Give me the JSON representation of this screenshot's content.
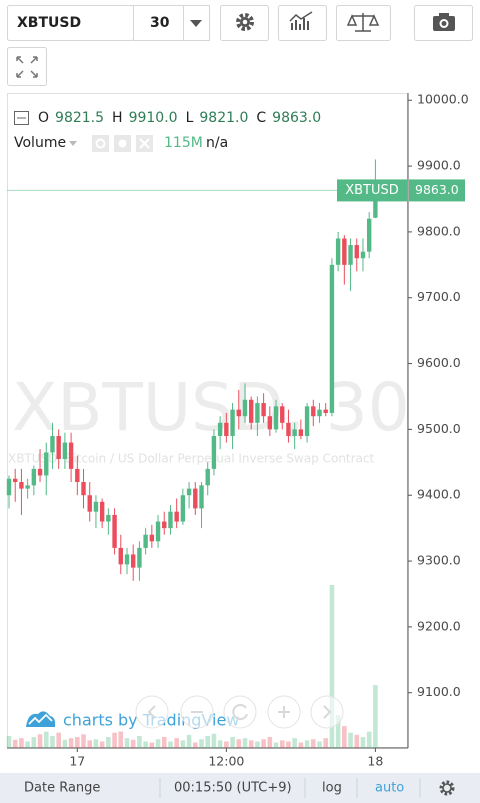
{
  "toolbar": {
    "symbol": "XBTUSD",
    "interval": "30"
  },
  "chart_data": {
    "type": "candlestick",
    "watermark": "XBTUSD, 30",
    "description": "XBTUSD, Bitcoin / US Dollar Perpetual Inverse Swap Contract",
    "header": {
      "labels": [
        "O",
        "H",
        "L",
        "C"
      ],
      "values": [
        "9821.5",
        "9910.0",
        "9821.0",
        "9863.0"
      ]
    },
    "categories": [
      null,
      null,
      null,
      null,
      null,
      null,
      null,
      null,
      null,
      null,
      null,
      "17",
      null,
      null,
      null,
      null,
      null,
      null,
      null,
      null,
      null,
      null,
      null,
      null,
      null,
      null,
      null,
      null,
      null,
      null,
      null,
      null,
      null,
      null,
      null,
      "12:00",
      null,
      null,
      null,
      null,
      null,
      null,
      null,
      null,
      null,
      null,
      null,
      null,
      null,
      null,
      null,
      null,
      null,
      null,
      null,
      null,
      null,
      null,
      null,
      "18"
    ],
    "open": [
      9400,
      9425,
      9420,
      9410,
      9415,
      9440,
      9430,
      9465,
      9490,
      9455,
      9480,
      9440,
      9420,
      9400,
      9375,
      9390,
      9360,
      9370,
      9320,
      9295,
      9310,
      9290,
      9320,
      9340,
      9330,
      9360,
      9350,
      9375,
      9360,
      9400,
      9410,
      9380,
      9415,
      9440,
      9490,
      9510,
      9490,
      9530,
      9520,
      9545,
      9510,
      9540,
      9520,
      9500,
      9535,
      9510,
      9490,
      9500,
      9490,
      9535,
      9520,
      9530,
      9525,
      9750,
      9790,
      9750,
      9780,
      9760,
      9770,
      9821.5
    ],
    "high": [
      9430,
      9440,
      9440,
      9425,
      9445,
      9470,
      9480,
      9510,
      9500,
      9495,
      9495,
      9460,
      9440,
      9420,
      9400,
      9395,
      9380,
      9380,
      9340,
      9320,
      9325,
      9330,
      9350,
      9355,
      9370,
      9375,
      9385,
      9395,
      9410,
      9420,
      9420,
      9420,
      9450,
      9500,
      9520,
      9525,
      9540,
      9560,
      9570,
      9550,
      9550,
      9555,
      9535,
      9545,
      9540,
      9530,
      9510,
      9515,
      9540,
      9545,
      9540,
      9540,
      9760,
      9800,
      9795,
      9790,
      9790,
      9790,
      9830,
      9910
    ],
    "low": [
      9380,
      9390,
      9370,
      9395,
      9400,
      9420,
      9400,
      9440,
      9440,
      9440,
      9420,
      9400,
      9380,
      9360,
      9350,
      9350,
      9340,
      9310,
      9280,
      9280,
      9270,
      9270,
      9310,
      9320,
      9320,
      9340,
      9340,
      9350,
      9355,
      9380,
      9370,
      9350,
      9400,
      9430,
      9470,
      9480,
      9470,
      9500,
      9510,
      9500,
      9490,
      9510,
      9490,
      9495,
      9500,
      9480,
      9470,
      9485,
      9480,
      9505,
      9510,
      9520,
      9520,
      9740,
      9720,
      9710,
      9740,
      9740,
      9760,
      9821
    ],
    "close": [
      9425,
      9420,
      9410,
      9415,
      9440,
      9430,
      9465,
      9490,
      9455,
      9480,
      9440,
      9420,
      9400,
      9375,
      9390,
      9360,
      9370,
      9320,
      9295,
      9310,
      9290,
      9320,
      9340,
      9330,
      9360,
      9350,
      9375,
      9360,
      9400,
      9410,
      9380,
      9415,
      9440,
      9490,
      9510,
      9490,
      9530,
      9520,
      9545,
      9510,
      9540,
      9520,
      9500,
      9535,
      9510,
      9490,
      9500,
      9490,
      9535,
      9520,
      9530,
      9525,
      9750,
      9790,
      9750,
      9780,
      9760,
      9770,
      9820,
      9863
    ],
    "up_color": "#53b987",
    "down_color": "#eb4d5c",
    "volume": {
      "name": "Volume",
      "current_label": "115M",
      "status": "n/a",
      "values": [
        22,
        15,
        18,
        12,
        20,
        25,
        30,
        22,
        28,
        15,
        18,
        20,
        25,
        14,
        16,
        12,
        20,
        28,
        30,
        18,
        15,
        22,
        12,
        10,
        16,
        20,
        12,
        18,
        14,
        24,
        10,
        16,
        22,
        26,
        14,
        12,
        20,
        16,
        18,
        14,
        12,
        16,
        20,
        10,
        14,
        12,
        18,
        10,
        14,
        16,
        12,
        18,
        298,
        60,
        40,
        28,
        24,
        20,
        30,
        115
      ]
    },
    "price_tag": {
      "symbol": "XBTUSD",
      "label": "9863.0"
    },
    "ylim": [
      9016,
      10011
    ],
    "yticks": [
      {
        "value": 9100,
        "label": "9100.0"
      },
      {
        "value": 9200,
        "label": "9200.0"
      },
      {
        "value": 9300,
        "label": "9300.0"
      },
      {
        "value": 9400,
        "label": "9400.0"
      },
      {
        "value": 9500,
        "label": "9500.0"
      },
      {
        "value": 9600,
        "label": "9600.0"
      },
      {
        "value": 9700,
        "label": "9700.0"
      },
      {
        "value": 9800,
        "label": "9800.0"
      },
      {
        "value": 9900,
        "label": "9900.0"
      },
      {
        "value": 10000,
        "label": "10000.0"
      }
    ],
    "branding": "charts by TradingView"
  },
  "footer": {
    "date_range": "Date Range",
    "clock": "00:15:50 (UTC+9)",
    "log": "log",
    "auto": "auto"
  }
}
